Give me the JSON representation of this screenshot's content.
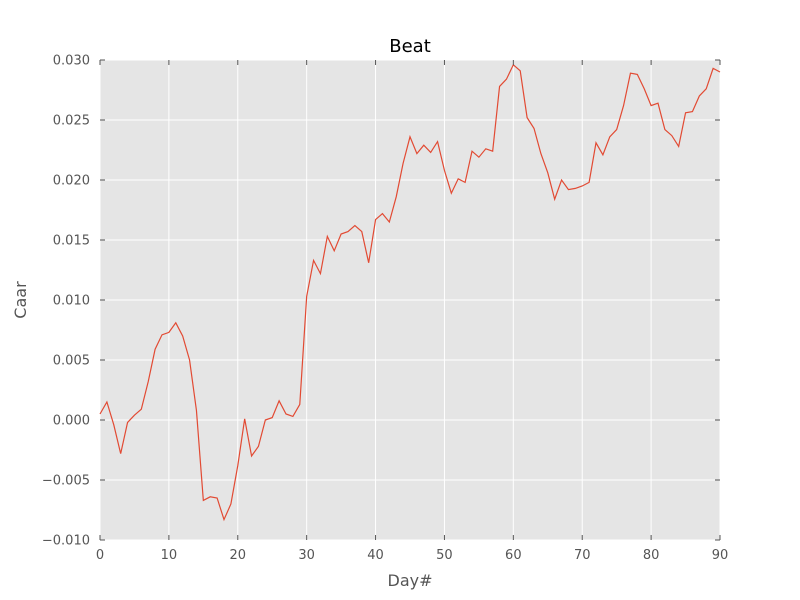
{
  "chart_data": {
    "type": "line",
    "title": "Beat",
    "xlabel": "Day#",
    "ylabel": "Caar",
    "xlim": [
      0,
      90
    ],
    "ylim": [
      -0.01,
      0.03
    ],
    "x_ticks": [
      0,
      10,
      20,
      30,
      40,
      50,
      60,
      70,
      80,
      90
    ],
    "x_tick_labels": [
      "0",
      "10",
      "20",
      "30",
      "40",
      "50",
      "60",
      "70",
      "80",
      "90"
    ],
    "y_ticks": [
      -0.01,
      -0.005,
      0.0,
      0.005,
      0.01,
      0.015,
      0.02,
      0.025,
      0.03
    ],
    "y_tick_labels": [
      "−0.010",
      "−0.005",
      "0.000",
      "0.005",
      "0.010",
      "0.015",
      "0.020",
      "0.025",
      "0.030"
    ],
    "grid": true,
    "colors": {
      "plot_background": "#e5e5e5",
      "grid": "#ffffff",
      "line": "#e24a33"
    },
    "series": [
      {
        "x": [
          0,
          1,
          2,
          3,
          4,
          5,
          6,
          7,
          8,
          9,
          10,
          11,
          12,
          13,
          14,
          15,
          16,
          17,
          18,
          19,
          20,
          21,
          22,
          23,
          24,
          25,
          26,
          27,
          28,
          29,
          30,
          31,
          32,
          33,
          34,
          35,
          36,
          37,
          38,
          39,
          40,
          41,
          42,
          43,
          44,
          45,
          46,
          47,
          48,
          49,
          50,
          51,
          52,
          53,
          54,
          55,
          56,
          57,
          58,
          59,
          60,
          61,
          62,
          63,
          64,
          65,
          66,
          67,
          68,
          69,
          70,
          71,
          72,
          73,
          74,
          75,
          76,
          77,
          78,
          79,
          80,
          81,
          82,
          83,
          84,
          85,
          86,
          87,
          88,
          89,
          90
        ],
        "values": [
          0.0005,
          0.0015,
          -0.0004,
          -0.0028,
          -0.0002,
          0.0004,
          0.0009,
          0.0032,
          0.0059,
          0.0071,
          0.0073,
          0.0081,
          0.007,
          0.005,
          0.0008,
          -0.0067,
          -0.0064,
          -0.0065,
          -0.0083,
          -0.007,
          -0.0038,
          0.0001,
          -0.003,
          -0.0022,
          0.0,
          0.0002,
          0.0016,
          0.0005,
          0.0003,
          0.0013,
          0.0103,
          0.0133,
          0.0122,
          0.0153,
          0.0141,
          0.0155,
          0.0157,
          0.0162,
          0.0157,
          0.0131,
          0.0167,
          0.0172,
          0.0165,
          0.0186,
          0.0214,
          0.0236,
          0.0222,
          0.0229,
          0.0223,
          0.0232,
          0.0208,
          0.0189,
          0.0201,
          0.0198,
          0.0224,
          0.0219,
          0.0226,
          0.0224,
          0.0278,
          0.0284,
          0.0296,
          0.0291,
          0.0252,
          0.0243,
          0.0222,
          0.0206,
          0.0184,
          0.02,
          0.0192,
          0.0193,
          0.0195,
          0.0198,
          0.0231,
          0.0221,
          0.0236,
          0.0242,
          0.0262,
          0.0289,
          0.0288,
          0.0276,
          0.0262,
          0.0264,
          0.0242,
          0.0237,
          0.0228,
          0.0256,
          0.0257,
          0.027,
          0.0276,
          0.0293,
          0.029
        ]
      }
    ]
  }
}
